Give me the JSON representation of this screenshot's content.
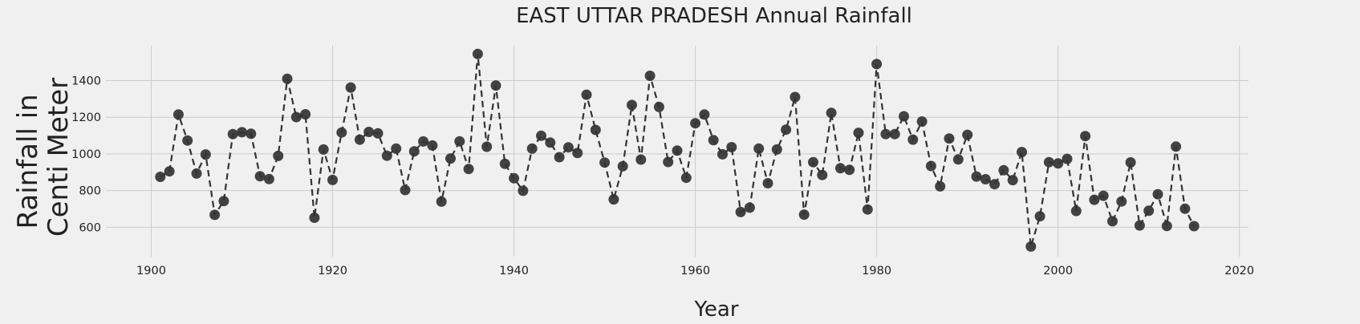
{
  "chart_data": {
    "type": "line",
    "title": "EAST UTTAR PRADESH Annual Rainfall",
    "xlabel": "Year",
    "ylabel_lines": [
      "Rainfall in",
      "Centi Meter"
    ],
    "xlim": [
      1895,
      2021
    ],
    "ylim": [
      440,
      1590
    ],
    "xticks": [
      1900,
      1920,
      1940,
      1960,
      1980,
      2000,
      2020
    ],
    "yticks": [
      600,
      800,
      1000,
      1200,
      1400
    ],
    "grid": true,
    "line_style": "dashed",
    "marker_color": "#333333",
    "series": [
      {
        "x": [
          1901,
          1902,
          1903,
          1904,
          1905,
          1906,
          1907,
          1908,
          1909,
          1910,
          1911,
          1912,
          1913,
          1914,
          1915,
          1916,
          1917,
          1918,
          1919,
          1920,
          1921,
          1922,
          1923,
          1924,
          1925,
          1926,
          1927,
          1928,
          1929,
          1930,
          1931,
          1932,
          1933,
          1934,
          1935,
          1936,
          1937,
          1938,
          1939,
          1940,
          1941,
          1942,
          1943,
          1944,
          1945,
          1946,
          1947,
          1948,
          1949,
          1950,
          1951,
          1952,
          1953,
          1954,
          1955,
          1956,
          1957,
          1958,
          1959,
          1960,
          1961,
          1962,
          1963,
          1964,
          1965,
          1966,
          1967,
          1968,
          1969,
          1970,
          1971,
          1972,
          1973,
          1974,
          1975,
          1976,
          1977,
          1978,
          1979,
          1980,
          1981,
          1982,
          1983,
          1984,
          1985,
          1986,
          1987,
          1988,
          1989,
          1990,
          1991,
          1992,
          1993,
          1994,
          1995,
          1996,
          1997,
          1998,
          1999,
          2000,
          2001,
          2002,
          2003,
          2004,
          2005,
          2006,
          2007,
          2008,
          2009,
          2010,
          2011,
          2012,
          2013,
          2014,
          2015
        ],
        "y": [
          875,
          905,
          1215,
          1073,
          893,
          997,
          668,
          743,
          1108,
          1118,
          1110,
          878,
          863,
          989,
          1410,
          1201,
          1216,
          652,
          1024,
          858,
          1117,
          1362,
          1078,
          1120,
          1112,
          990,
          1029,
          803,
          1014,
          1068,
          1046,
          740,
          975,
          1069,
          918,
          1545,
          1039,
          1373,
          946,
          867,
          799,
          1029,
          1099,
          1062,
          982,
          1036,
          1005,
          1323,
          1131,
          953,
          752,
          933,
          1267,
          969,
          1426,
          1256,
          956,
          1018,
          870,
          1167,
          1215,
          1075,
          998,
          1037,
          683,
          707,
          1029,
          840,
          1024,
          1132,
          1310,
          669,
          955,
          885,
          1224,
          922,
          913,
          1115,
          697,
          1490,
          1108,
          1108,
          1205,
          1078,
          1177,
          934,
          823,
          1084,
          970,
          1104,
          877,
          862,
          835,
          911,
          857,
          1010,
          495,
          660,
          955,
          948,
          973,
          689,
          1097,
          750,
          772,
          633,
          741,
          954,
          610,
          690,
          780,
          607,
          1040,
          701,
          606
        ]
      }
    ]
  }
}
